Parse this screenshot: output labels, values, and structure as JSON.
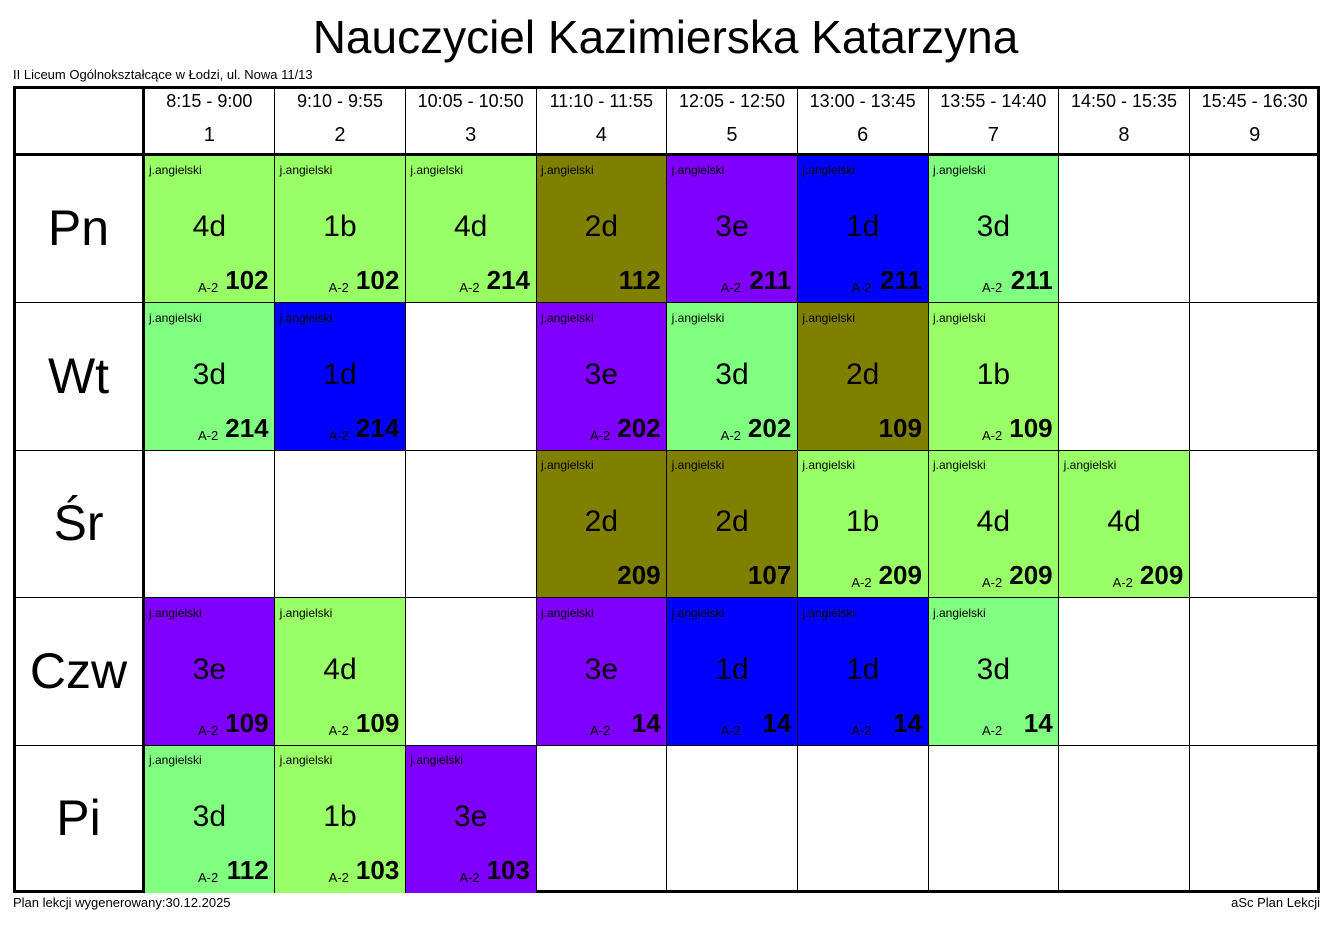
{
  "header": {
    "title": "Nauczyciel Kazimierska Katarzyna",
    "school": "II Liceum Ogólnokształcące w Łodzi, ul. Nowa 11/13"
  },
  "periods": [
    {
      "time": "8:15 - 9:00",
      "number": "1"
    },
    {
      "time": "9:10 - 9:55",
      "number": "2"
    },
    {
      "time": "10:05 - 10:50",
      "number": "3"
    },
    {
      "time": "11:10 - 11:55",
      "number": "4"
    },
    {
      "time": "12:05 - 12:50",
      "number": "5"
    },
    {
      "time": "13:00 - 13:45",
      "number": "6"
    },
    {
      "time": "13:55 - 14:40",
      "number": "7"
    },
    {
      "time": "14:50 - 15:35",
      "number": "8"
    },
    {
      "time": "15:45 - 16:30",
      "number": "9"
    }
  ],
  "days": [
    {
      "name": "Pn",
      "lessons": [
        {
          "subject": "j.angielski",
          "class": "4d",
          "building": "A-2",
          "room": "102",
          "color": "#99ff66"
        },
        {
          "subject": "j.angielski",
          "class": "1b",
          "building": "A-2",
          "room": "102",
          "color": "#99ff66"
        },
        {
          "subject": "j.angielski",
          "class": "4d",
          "building": "A-2",
          "room": "214",
          "color": "#99ff66"
        },
        {
          "subject": "j.angielski",
          "class": "2d",
          "room": "112",
          "color": "#808000"
        },
        {
          "subject": "j.angielski",
          "class": "3e",
          "building": "A-2",
          "room": "211",
          "color": "#8000ff"
        },
        {
          "subject": "j.angielski",
          "class": "1d",
          "building": "A-2",
          "room": "211",
          "color": "#0000ff"
        },
        {
          "subject": "j.angielski",
          "class": "3d",
          "building": "A-2",
          "room": "211",
          "color": "#80ff80"
        },
        null,
        null
      ]
    },
    {
      "name": "Wt",
      "lessons": [
        {
          "subject": "j.angielski",
          "class": "3d",
          "building": "A-2",
          "room": "214",
          "color": "#80ff80"
        },
        {
          "subject": "j.angielski",
          "class": "1d",
          "building": "A-2",
          "room": "214",
          "color": "#0000ff"
        },
        null,
        {
          "subject": "j.angielski",
          "class": "3e",
          "building": "A-2",
          "room": "202",
          "color": "#8000ff"
        },
        {
          "subject": "j.angielski",
          "class": "3d",
          "building": "A-2",
          "room": "202",
          "color": "#80ff80"
        },
        {
          "subject": "j.angielski",
          "class": "2d",
          "room": "109",
          "color": "#808000"
        },
        {
          "subject": "j.angielski",
          "class": "1b",
          "building": "A-2",
          "room": "109",
          "color": "#99ff66"
        },
        null,
        null
      ]
    },
    {
      "name": "Śr",
      "lessons": [
        null,
        null,
        null,
        {
          "subject": "j.angielski",
          "class": "2d",
          "room": "209",
          "color": "#808000"
        },
        {
          "subject": "j.angielski",
          "class": "2d",
          "room": "107",
          "color": "#808000"
        },
        {
          "subject": "j.angielski",
          "class": "1b",
          "building": "A-2",
          "room": "209",
          "color": "#99ff66"
        },
        {
          "subject": "j.angielski",
          "class": "4d",
          "building": "A-2",
          "room": "209",
          "color": "#99ff66"
        },
        {
          "subject": "j.angielski",
          "class": "4d",
          "building": "A-2",
          "room": "209",
          "color": "#99ff66"
        },
        null
      ]
    },
    {
      "name": "Czw",
      "lessons": [
        {
          "subject": "j.angielski",
          "class": "3e",
          "building": "A-2",
          "room": "109",
          "color": "#8000ff"
        },
        {
          "subject": "j.angielski",
          "class": "4d",
          "building": "A-2",
          "room": "109",
          "color": "#99ff66"
        },
        null,
        {
          "subject": "j.angielski",
          "class": "3e",
          "building": "A-2",
          "room": "14",
          "color": "#8000ff"
        },
        {
          "subject": "j.angielski",
          "class": "1d",
          "building": "A-2",
          "room": "14",
          "color": "#0000ff"
        },
        {
          "subject": "j.angielski",
          "class": "1d",
          "building": "A-2",
          "room": "14",
          "color": "#0000ff"
        },
        {
          "subject": "j.angielski",
          "class": "3d",
          "building": "A-2",
          "room": "14",
          "color": "#80ff80"
        },
        null,
        null
      ]
    },
    {
      "name": "Pi",
      "lessons": [
        {
          "subject": "j.angielski",
          "class": "3d",
          "building": "A-2",
          "room": "112",
          "color": "#80ff80"
        },
        {
          "subject": "j.angielski",
          "class": "1b",
          "building": "A-2",
          "room": "103",
          "color": "#99ff66"
        },
        {
          "subject": "j.angielski",
          "class": "3e",
          "building": "A-2",
          "room": "103",
          "color": "#8000ff"
        },
        null,
        null,
        null,
        null,
        null,
        null
      ]
    }
  ],
  "footer": {
    "generated": "Plan lekcji wygenerowany:30.12.2025",
    "software": "aSc Plan Lekcji"
  }
}
